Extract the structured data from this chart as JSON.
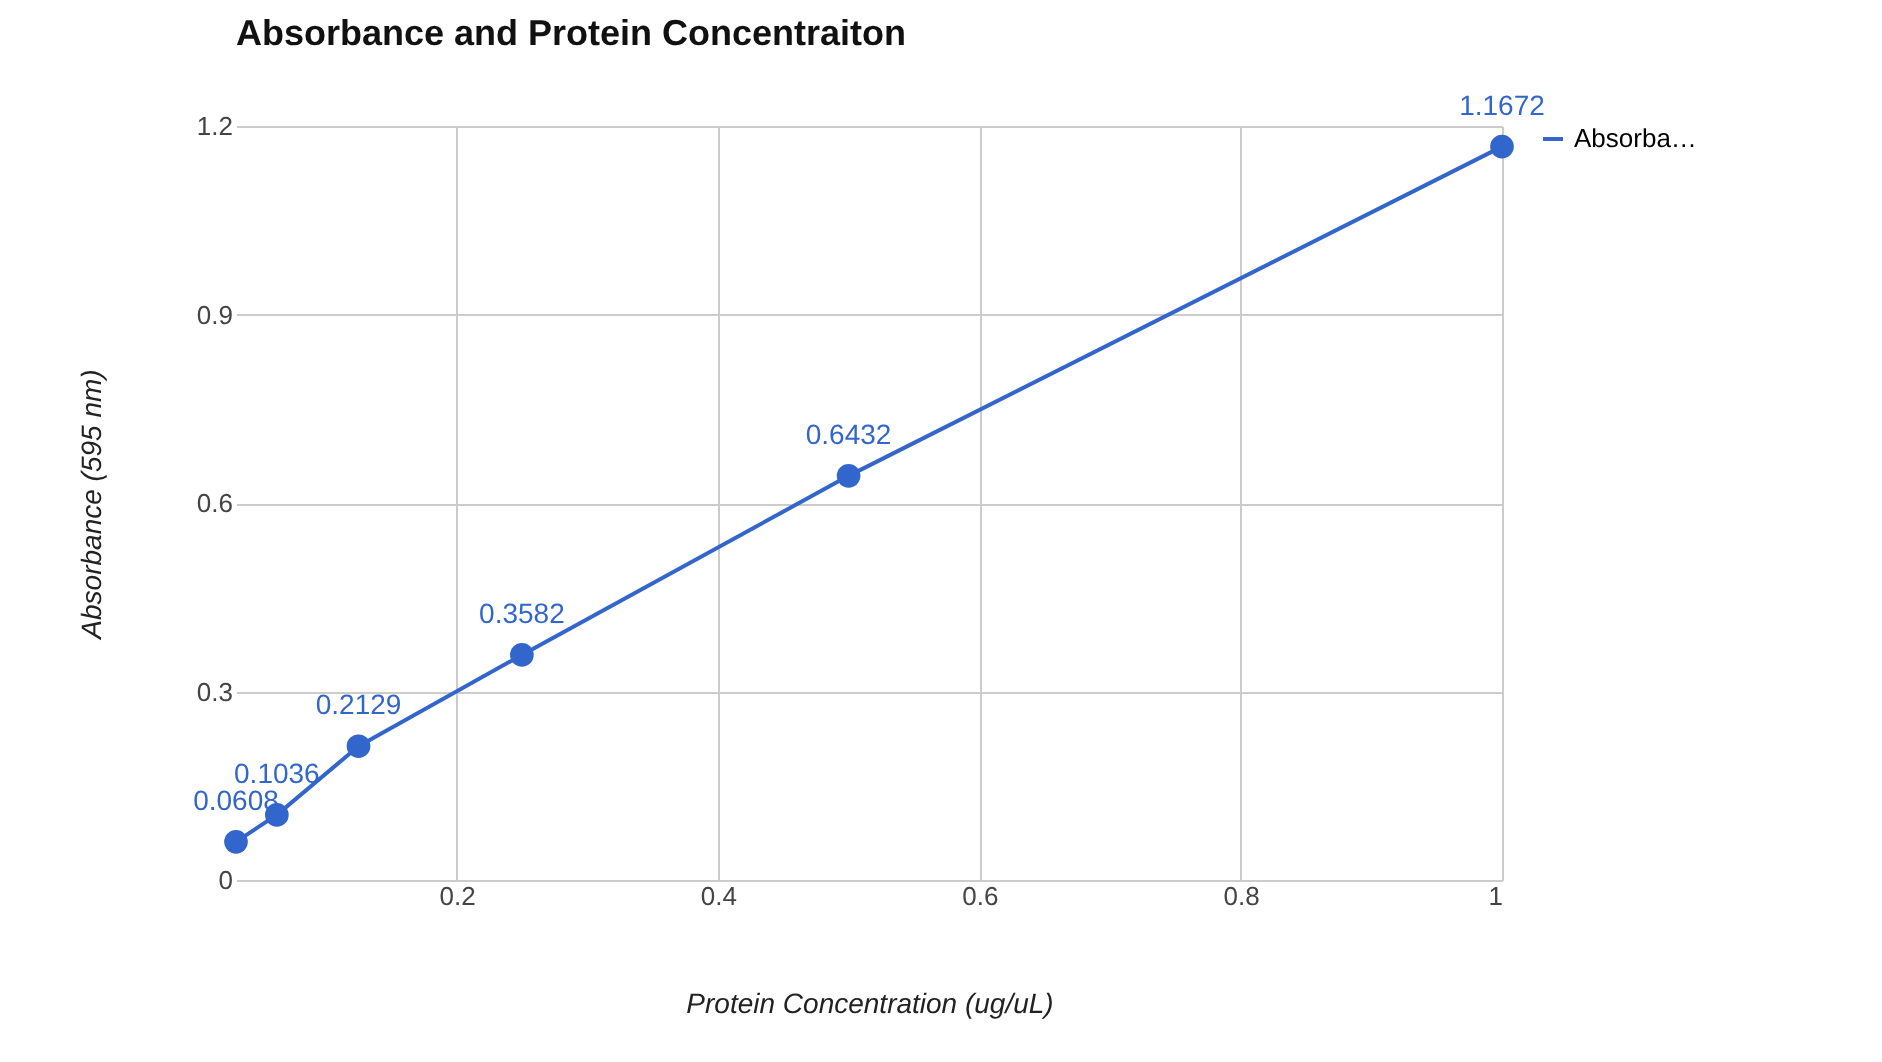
{
  "chart_data": {
    "type": "line",
    "title": "Absorbance and Protein Concentraiton",
    "xlabel": "Protein Concentration (ug/uL)",
    "ylabel": "Absorbance (595 nm)",
    "x": [
      0.03125,
      0.0625,
      0.125,
      0.25,
      0.5,
      1
    ],
    "series": [
      {
        "name": "Absorba…",
        "color": "#3366cc",
        "values": [
          0.0608,
          0.1036,
          0.2129,
          0.3582,
          0.6432,
          1.1672
        ]
      }
    ],
    "xlim": [
      0.03125,
      1
    ],
    "xticks": [
      0.2,
      0.4,
      0.6,
      0.8,
      1
    ],
    "ylim": [
      0,
      1.2
    ],
    "yticks": [
      0,
      0.3,
      0.6,
      0.9,
      1.2
    ],
    "grid": true,
    "legend": "right",
    "marker": "circle",
    "line_style": "solid",
    "data_labels": true
  }
}
